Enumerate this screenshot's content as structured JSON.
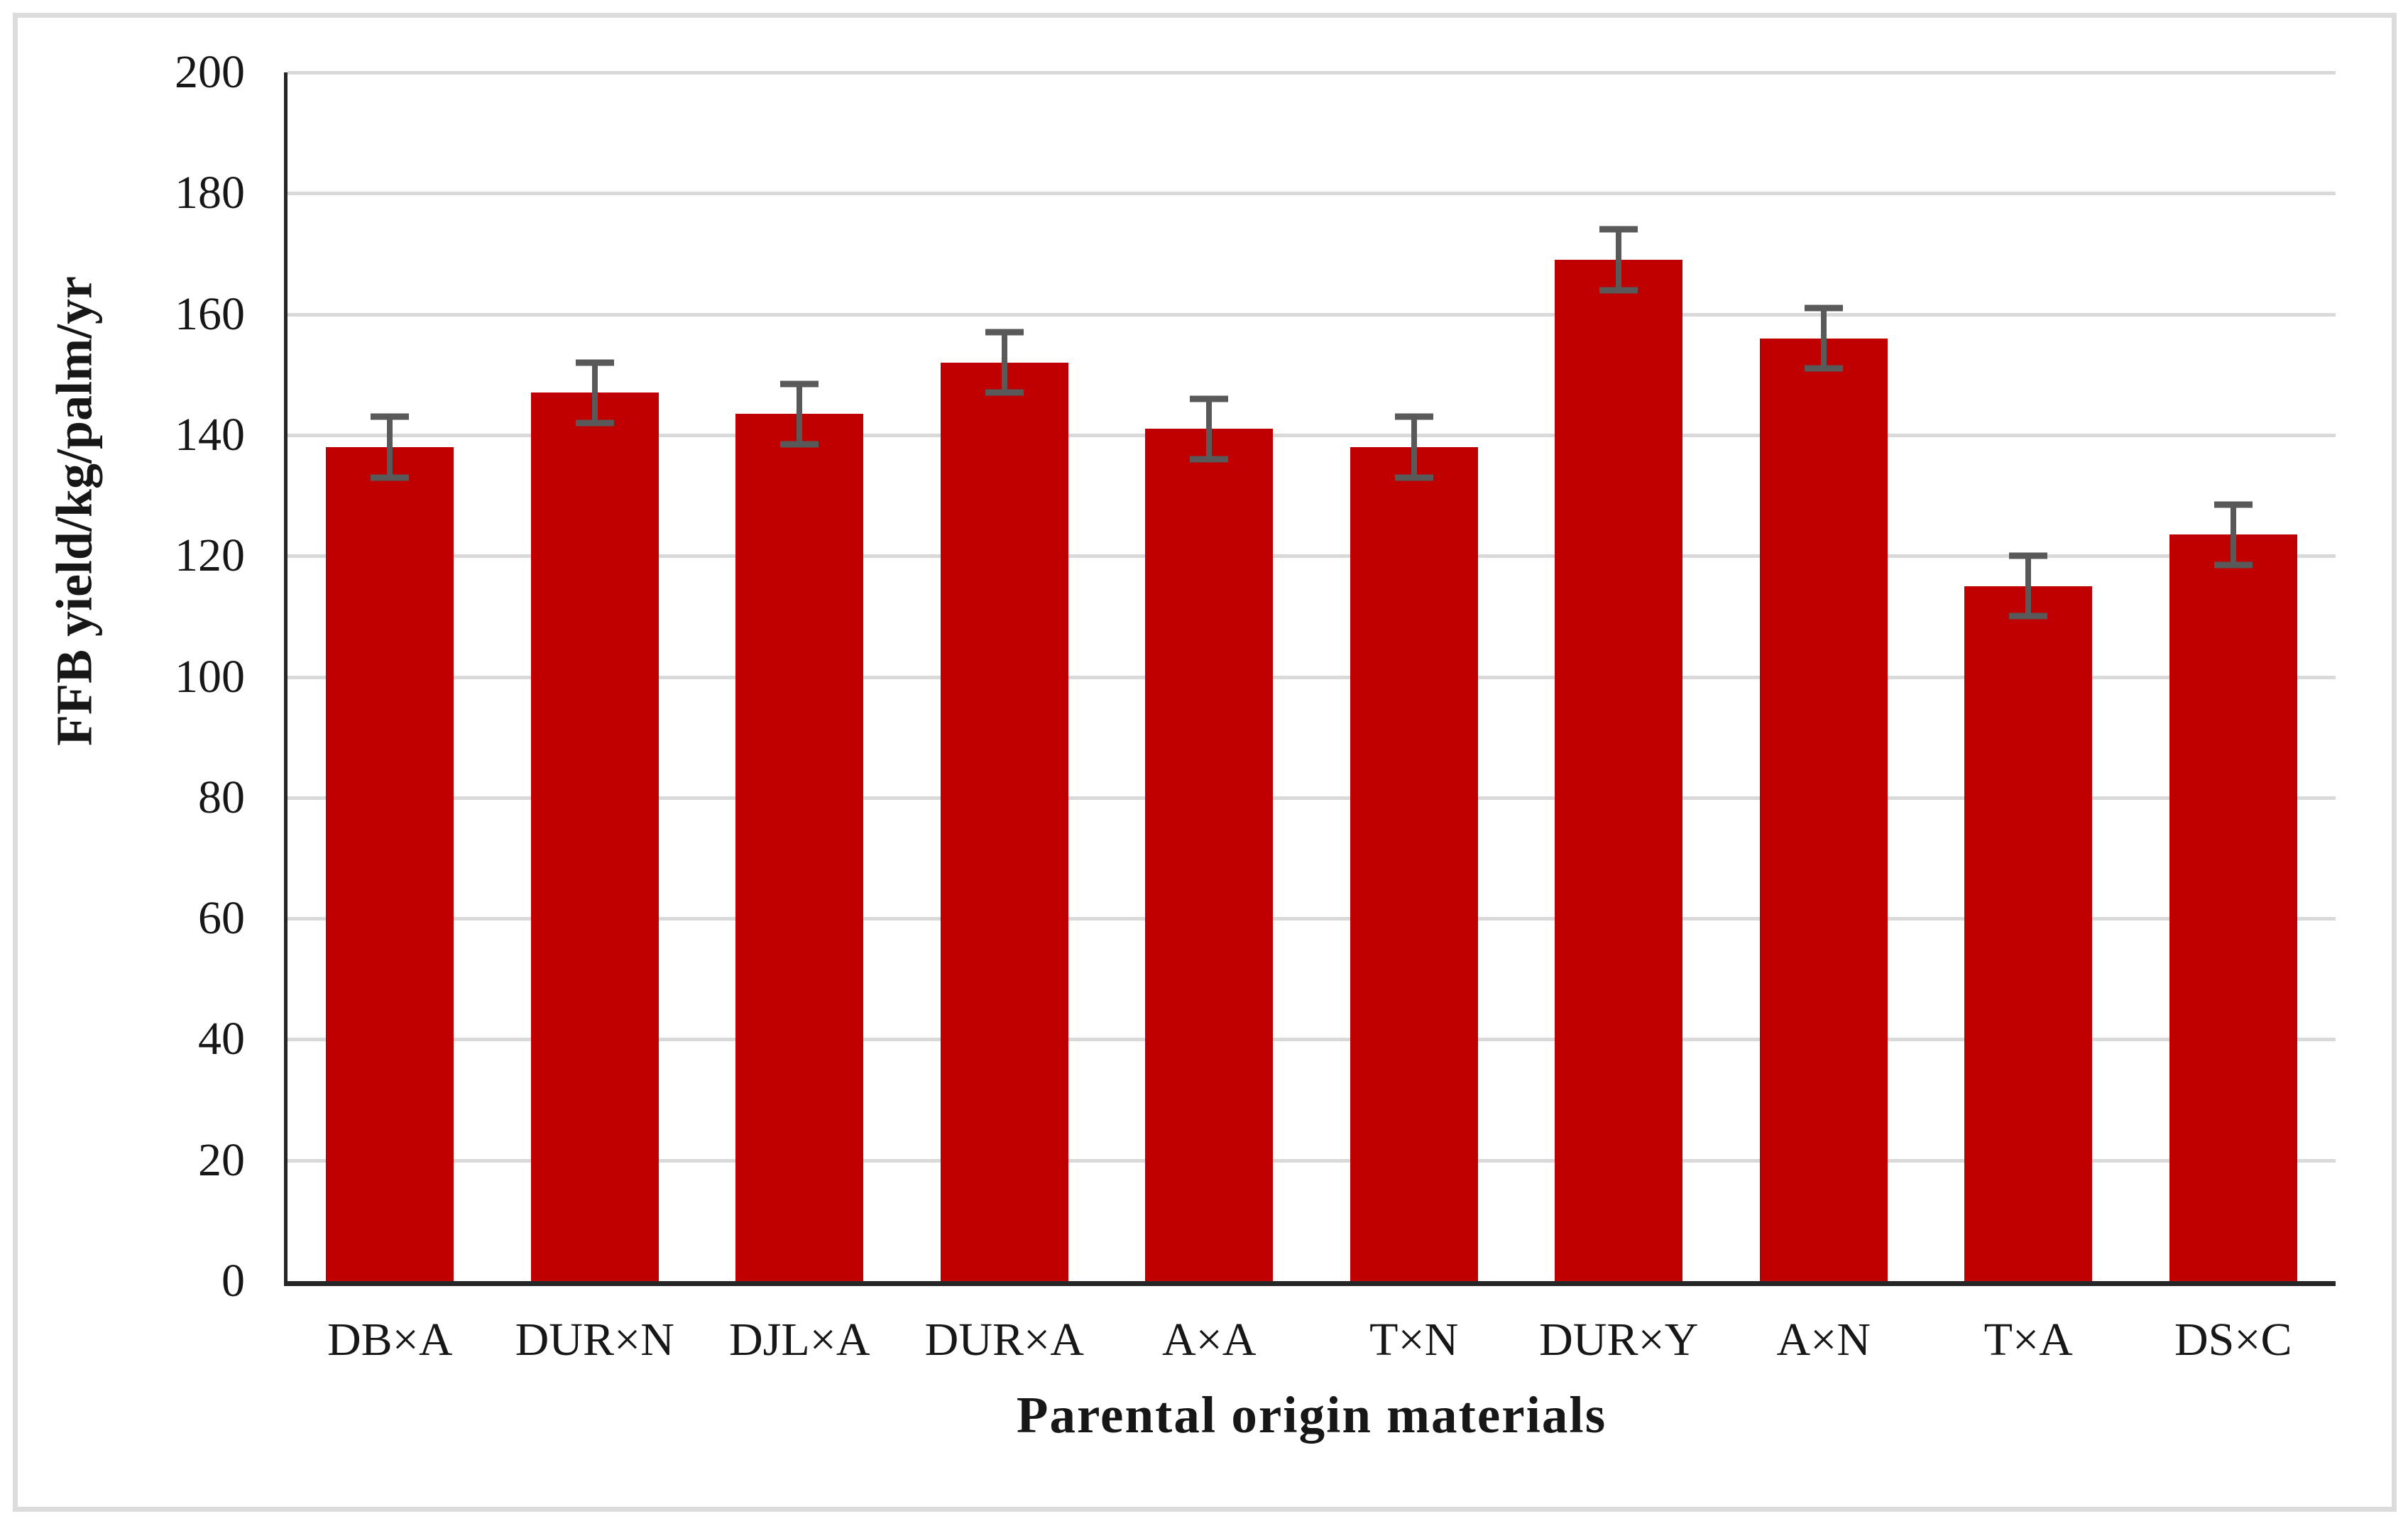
{
  "chart_data": {
    "type": "bar",
    "title": "",
    "xlabel": "Parental origin materials",
    "ylabel": "FFB yield/kg/palm/yr",
    "categories": [
      "DB×A",
      "DUR×N",
      "DJL×A",
      "DUR×A",
      "A×A",
      "T×N",
      "DUR×Y",
      "A×N",
      "T×A",
      "DS×C"
    ],
    "values": [
      138,
      147,
      143.5,
      152,
      141,
      138,
      169,
      156,
      115,
      123.5
    ],
    "error_bars": [
      5,
      5,
      5,
      5,
      5,
      5,
      5,
      5,
      5,
      5
    ],
    "ylim": [
      0,
      200
    ],
    "yticks": [
      0,
      20,
      40,
      60,
      80,
      100,
      120,
      140,
      160,
      180,
      200
    ],
    "grid": "horizontal-only",
    "legend": "none",
    "colors": {
      "bar": "#c00000",
      "error_bar": "#595959",
      "gridline": "#d9d9d9",
      "axis_line": "#262626",
      "frame_border": "#dcdcdc",
      "text": "#171717"
    }
  }
}
